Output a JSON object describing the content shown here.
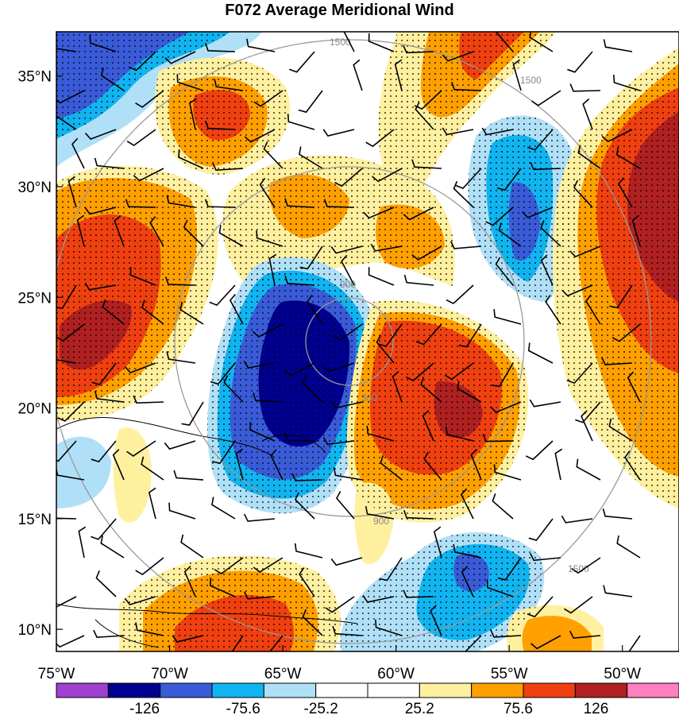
{
  "title": "F072 Average Meridional Wind",
  "map": {
    "lon_range": [
      -75,
      -47.5
    ],
    "lat_range": [
      9,
      37
    ],
    "lon_ticks": [
      {
        "value": -75,
        "label": "75°W"
      },
      {
        "value": -70,
        "label": "70°W"
      },
      {
        "value": -65,
        "label": "65°W"
      },
      {
        "value": -60,
        "label": "60°W"
      },
      {
        "value": -55,
        "label": "55°W"
      },
      {
        "value": -50,
        "label": "50°W"
      }
    ],
    "lat_ticks": [
      {
        "value": 35,
        "label": "35°N"
      },
      {
        "value": 30,
        "label": "30°N"
      },
      {
        "value": 25,
        "label": "25°N"
      },
      {
        "value": 20,
        "label": "20°N"
      },
      {
        "value": 15,
        "label": "15°N"
      },
      {
        "value": 10,
        "label": "10°N"
      }
    ],
    "range_ring_labels": [
      "300",
      "900",
      "1500"
    ]
  },
  "colorbar": {
    "colors": [
      "#a040d0",
      "#000090",
      "#3a5bd8",
      "#10b4f0",
      "#b0e0f8",
      "#ffffff",
      "#ffffff",
      "#fff0a0",
      "#ffa000",
      "#f04010",
      "#b02020",
      "#ff80c0"
    ],
    "labels": [
      "-126",
      "-75.6",
      "-25.2",
      "25.2",
      "75.6",
      "126"
    ]
  }
}
